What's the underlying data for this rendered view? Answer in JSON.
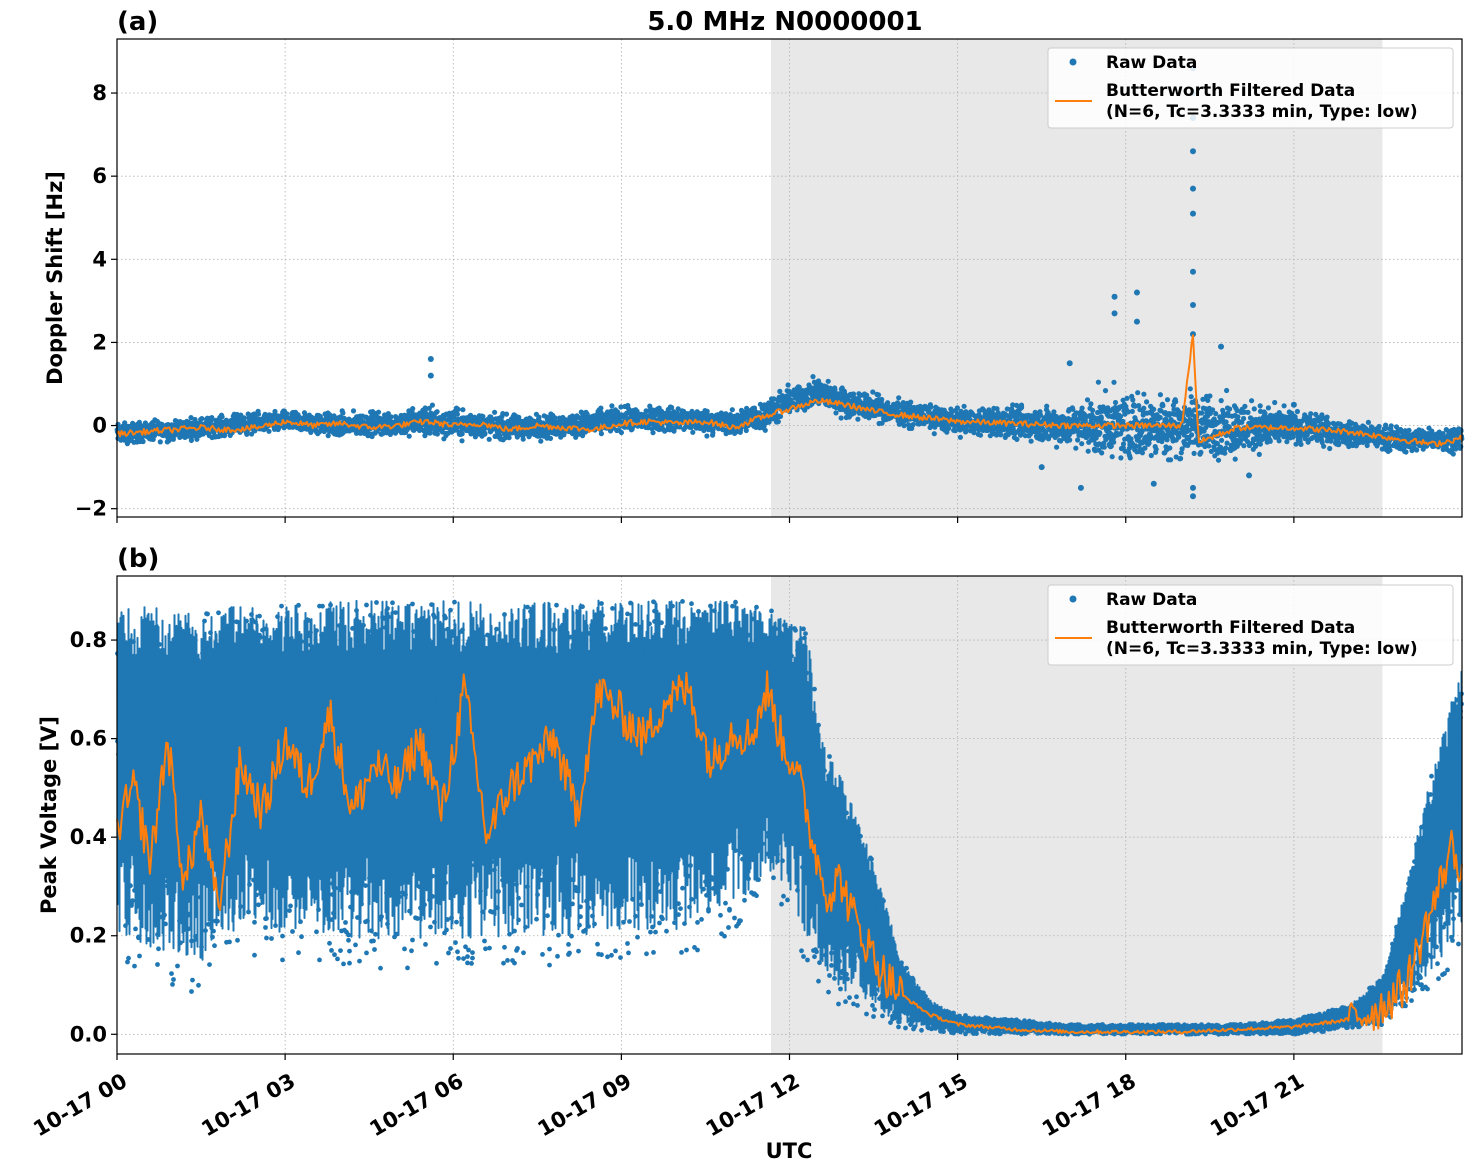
{
  "title": "5.0 MHz N0000001",
  "xlabel": "UTC",
  "x_ticks": [
    "10-17 00",
    "10-17 03",
    "10-17 06",
    "10-17 09",
    "10-17 12",
    "10-17 15",
    "10-17 18",
    "10-17 21"
  ],
  "legend": {
    "raw": "Raw Data",
    "filtered_line1": "Butterworth Filtered Data",
    "filtered_line2": "(N=6, Tc=3.3333 min, Type: low)"
  },
  "colors": {
    "raw": "#1f77b4",
    "filtered": "#ff7f0e",
    "shade": "#e8e8e8"
  },
  "chart_data": [
    {
      "type": "scatter",
      "panel_label": "(a)",
      "ylabel": "Doppler Shift [Hz]",
      "xlim_hours": [
        0,
        24
      ],
      "ylim": [
        -2.2,
        9.3
      ],
      "y_ticks": [
        -2,
        0,
        2,
        4,
        6,
        8
      ],
      "y_tick_labels": [
        "−2",
        "0",
        "2",
        "4",
        "6",
        "8"
      ],
      "shaded_interval_hours": [
        11.67,
        22.58
      ],
      "grid": true,
      "legend_position": "top-right",
      "series": [
        {
          "name": "Raw Data",
          "kind": "points",
          "x_hours": [
            0,
            1,
            2,
            3,
            4,
            5,
            5.6,
            6,
            7,
            8,
            9,
            10,
            11,
            11.67,
            12,
            12.5,
            13,
            14,
            15,
            16,
            17,
            17.5,
            18,
            18.5,
            19,
            19.2,
            20,
            21,
            22,
            23,
            24
          ],
          "y_center": [
            -0.2,
            -0.1,
            0.0,
            0.1,
            0.0,
            0.05,
            0.1,
            0.05,
            -0.05,
            0.0,
            0.15,
            0.15,
            0.05,
            0.3,
            0.6,
            0.8,
            0.55,
            0.3,
            0.1,
            0.05,
            0.0,
            0.0,
            0.0,
            0.0,
            0.0,
            0.0,
            -0.05,
            -0.05,
            -0.2,
            -0.35,
            -0.3
          ],
          "y_spread": [
            0.25,
            0.25,
            0.25,
            0.25,
            0.3,
            0.3,
            0.4,
            0.35,
            0.3,
            0.3,
            0.3,
            0.3,
            0.3,
            0.35,
            0.35,
            0.35,
            0.35,
            0.3,
            0.3,
            0.4,
            0.5,
            0.8,
            0.8,
            0.8,
            0.8,
            0.8,
            0.7,
            0.4,
            0.3,
            0.3,
            0.3
          ],
          "outliers": [
            [
              5.6,
              1.6
            ],
            [
              5.6,
              1.2
            ],
            [
              17.0,
              1.5
            ],
            [
              17.8,
              3.1
            ],
            [
              17.8,
              2.7
            ],
            [
              18.2,
              3.2
            ],
            [
              18.2,
              2.5
            ],
            [
              19.2,
              8.6
            ],
            [
              19.2,
              8.0
            ],
            [
              19.2,
              7.4
            ],
            [
              19.2,
              6.6
            ],
            [
              19.2,
              5.7
            ],
            [
              19.2,
              5.1
            ],
            [
              19.2,
              3.7
            ],
            [
              19.2,
              2.9
            ],
            [
              19.2,
              2.2
            ],
            [
              19.2,
              -1.5
            ],
            [
              19.2,
              -1.7
            ],
            [
              17.2,
              -1.5
            ],
            [
              18.5,
              -1.4
            ],
            [
              19.7,
              1.9
            ],
            [
              21.0,
              0.5
            ],
            [
              16.5,
              -1.0
            ],
            [
              20.2,
              -1.2
            ]
          ]
        },
        {
          "name": "Butterworth Filtered Data",
          "kind": "line",
          "x_hours": [
            0,
            0.5,
            1,
            1.5,
            2,
            2.5,
            3,
            3.5,
            4,
            4.5,
            5,
            5.5,
            6,
            6.5,
            7,
            7.5,
            8,
            8.5,
            9,
            9.5,
            10,
            10.5,
            11,
            11.5,
            12,
            12.5,
            13,
            13.5,
            14,
            15,
            16,
            17,
            18,
            19,
            19.2,
            19.3,
            20,
            21,
            22,
            22.5,
            23,
            23.5,
            24
          ],
          "y": [
            -0.2,
            -0.15,
            -0.1,
            -0.05,
            -0.1,
            -0.05,
            0.1,
            0.0,
            0.05,
            -0.05,
            0.0,
            0.1,
            0.0,
            0.05,
            -0.1,
            0.0,
            -0.05,
            -0.1,
            0.05,
            0.1,
            0.05,
            0.1,
            -0.05,
            0.2,
            0.4,
            0.6,
            0.5,
            0.35,
            0.25,
            0.1,
            0.05,
            0.0,
            0.0,
            0.0,
            2.2,
            -0.4,
            -0.05,
            -0.05,
            -0.15,
            -0.25,
            -0.35,
            -0.45,
            -0.3
          ]
        }
      ]
    },
    {
      "type": "scatter",
      "panel_label": "(b)",
      "ylabel": "Peak Voltage [V]",
      "xlim_hours": [
        0,
        24
      ],
      "ylim": [
        -0.04,
        0.93
      ],
      "y_ticks": [
        0.0,
        0.2,
        0.4,
        0.6,
        0.8
      ],
      "y_tick_labels": [
        "0.0",
        "0.2",
        "0.4",
        "0.6",
        "0.8"
      ],
      "shaded_interval_hours": [
        11.67,
        22.58
      ],
      "grid": true,
      "legend_position": "top-right",
      "series": [
        {
          "name": "Raw Data",
          "kind": "band",
          "x_hours": [
            0,
            0.5,
            1,
            1.5,
            1.8,
            2.5,
            3,
            4,
            5,
            6,
            7,
            8,
            9,
            10,
            11,
            11.67,
            12,
            12.3,
            12.6,
            13,
            13.5,
            14,
            14.5,
            15,
            16,
            17,
            18,
            19,
            20,
            21,
            22,
            22.6,
            23,
            23.5,
            24
          ],
          "y_low": [
            0.15,
            0.12,
            0.1,
            0.08,
            0.15,
            0.15,
            0.15,
            0.14,
            0.13,
            0.13,
            0.14,
            0.14,
            0.15,
            0.15,
            0.2,
            0.28,
            0.25,
            0.12,
            0.08,
            0.05,
            0.03,
            0.01,
            0.005,
            0.0,
            0.0,
            0.0,
            0.0,
            0.0,
            0.0,
            0.0,
            0.01,
            0.02,
            0.05,
            0.1,
            0.15
          ],
          "y_high": [
            0.86,
            0.87,
            0.86,
            0.85,
            0.87,
            0.87,
            0.87,
            0.88,
            0.88,
            0.88,
            0.87,
            0.88,
            0.88,
            0.88,
            0.88,
            0.86,
            0.84,
            0.82,
            0.6,
            0.5,
            0.35,
            0.15,
            0.07,
            0.04,
            0.03,
            0.02,
            0.02,
            0.02,
            0.02,
            0.03,
            0.06,
            0.12,
            0.3,
            0.55,
            0.75
          ]
        },
        {
          "name": "Butterworth Filtered Data",
          "kind": "line",
          "x_hours": [
            0,
            0.3,
            0.6,
            0.9,
            1.2,
            1.5,
            1.8,
            2.2,
            2.6,
            3,
            3.4,
            3.8,
            4.2,
            4.6,
            5,
            5.4,
            5.8,
            6.2,
            6.6,
            7,
            7.4,
            7.8,
            8.2,
            8.6,
            9,
            9.4,
            9.8,
            10.2,
            10.6,
            11,
            11.3,
            11.6,
            11.9,
            12.1,
            12.3,
            12.5,
            12.7,
            12.9,
            13.1,
            13.4,
            13.7,
            14,
            14.5,
            15,
            16,
            17,
            18,
            19,
            20,
            21,
            22,
            22.5,
            23,
            23.3,
            23.6,
            23.8,
            24
          ],
          "y": [
            0.42,
            0.5,
            0.35,
            0.6,
            0.3,
            0.45,
            0.25,
            0.55,
            0.45,
            0.6,
            0.5,
            0.65,
            0.45,
            0.55,
            0.5,
            0.6,
            0.45,
            0.7,
            0.4,
            0.5,
            0.55,
            0.6,
            0.45,
            0.7,
            0.65,
            0.6,
            0.68,
            0.7,
            0.55,
            0.62,
            0.6,
            0.7,
            0.58,
            0.55,
            0.45,
            0.35,
            0.28,
            0.32,
            0.25,
            0.18,
            0.12,
            0.08,
            0.04,
            0.02,
            0.01,
            0.005,
            0.005,
            0.005,
            0.01,
            0.015,
            0.03,
            0.05,
            0.1,
            0.2,
            0.3,
            0.38,
            0.34
          ]
        }
      ]
    }
  ]
}
